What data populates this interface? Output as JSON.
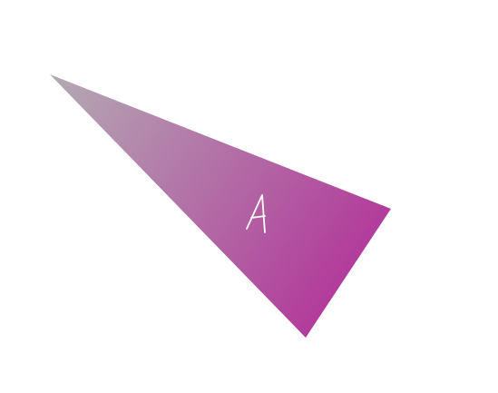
{
  "diagram": {
    "shape": "triangle",
    "label": "A",
    "colors": {
      "gradient_start": "#b3a9b3",
      "gradient_end": "#b22f98",
      "label_color": "#ffffff",
      "background": "#ffffff"
    }
  }
}
